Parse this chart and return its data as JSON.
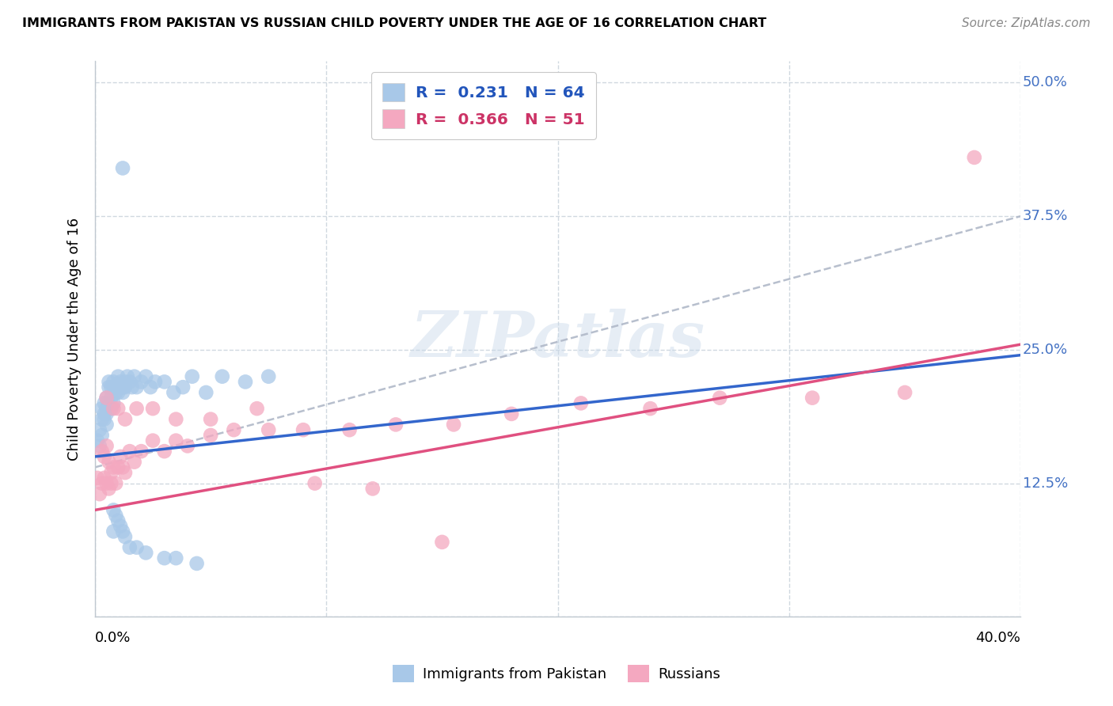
{
  "title": "IMMIGRANTS FROM PAKISTAN VS RUSSIAN CHILD POVERTY UNDER THE AGE OF 16 CORRELATION CHART",
  "source": "Source: ZipAtlas.com",
  "ylabel": "Child Poverty Under the Age of 16",
  "xlim": [
    0.0,
    0.4
  ],
  "ylim": [
    0.0,
    0.52
  ],
  "yticks": [
    0.0,
    0.125,
    0.25,
    0.375,
    0.5
  ],
  "ytick_labels": [
    "",
    "12.5%",
    "25.0%",
    "37.5%",
    "50.0%"
  ],
  "legend1_label": "R =  0.231   N = 64",
  "legend2_label": "R =  0.366   N = 51",
  "series1_name": "Immigrants from Pakistan",
  "series2_name": "Russians",
  "series1_color": "#a8c8e8",
  "series2_color": "#f4a8c0",
  "series1_line_color": "#3366cc",
  "series2_line_color": "#e05080",
  "trendline_color": "#b0b8c8",
  "watermark": "ZIPatlas",
  "background_color": "#ffffff",
  "grid_color": "#d0d8e0",
  "pakistan_x": [
    0.001,
    0.002,
    0.002,
    0.003,
    0.003,
    0.003,
    0.004,
    0.004,
    0.004,
    0.005,
    0.005,
    0.005,
    0.005,
    0.006,
    0.006,
    0.006,
    0.007,
    0.007,
    0.007,
    0.008,
    0.008,
    0.008,
    0.009,
    0.009,
    0.01,
    0.01,
    0.01,
    0.011,
    0.011,
    0.012,
    0.012,
    0.013,
    0.013,
    0.014,
    0.015,
    0.016,
    0.017,
    0.018,
    0.02,
    0.022,
    0.024,
    0.026,
    0.03,
    0.034,
    0.038,
    0.042,
    0.048,
    0.055,
    0.065,
    0.075,
    0.008,
    0.009,
    0.01,
    0.011,
    0.012,
    0.013,
    0.015,
    0.018,
    0.022,
    0.03,
    0.035,
    0.044,
    0.012,
    0.008
  ],
  "pakistan_y": [
    0.165,
    0.175,
    0.16,
    0.185,
    0.17,
    0.195,
    0.19,
    0.185,
    0.2,
    0.19,
    0.195,
    0.18,
    0.205,
    0.215,
    0.2,
    0.22,
    0.215,
    0.205,
    0.195,
    0.215,
    0.22,
    0.2,
    0.21,
    0.215,
    0.225,
    0.218,
    0.21,
    0.215,
    0.22,
    0.21,
    0.215,
    0.215,
    0.22,
    0.225,
    0.22,
    0.215,
    0.225,
    0.215,
    0.22,
    0.225,
    0.215,
    0.22,
    0.22,
    0.21,
    0.215,
    0.225,
    0.21,
    0.225,
    0.22,
    0.225,
    0.1,
    0.095,
    0.09,
    0.085,
    0.08,
    0.075,
    0.065,
    0.065,
    0.06,
    0.055,
    0.055,
    0.05,
    0.42,
    0.08
  ],
  "russia_x": [
    0.001,
    0.002,
    0.003,
    0.003,
    0.004,
    0.004,
    0.005,
    0.005,
    0.006,
    0.006,
    0.007,
    0.007,
    0.008,
    0.009,
    0.01,
    0.011,
    0.012,
    0.013,
    0.015,
    0.017,
    0.02,
    0.025,
    0.03,
    0.035,
    0.04,
    0.05,
    0.06,
    0.075,
    0.09,
    0.11,
    0.13,
    0.155,
    0.18,
    0.21,
    0.24,
    0.27,
    0.31,
    0.008,
    0.01,
    0.013,
    0.018,
    0.025,
    0.035,
    0.05,
    0.07,
    0.095,
    0.12,
    0.15,
    0.35,
    0.38,
    0.005
  ],
  "russia_y": [
    0.13,
    0.115,
    0.125,
    0.155,
    0.13,
    0.15,
    0.125,
    0.16,
    0.12,
    0.145,
    0.135,
    0.125,
    0.14,
    0.125,
    0.14,
    0.15,
    0.14,
    0.135,
    0.155,
    0.145,
    0.155,
    0.165,
    0.155,
    0.165,
    0.16,
    0.17,
    0.175,
    0.175,
    0.175,
    0.175,
    0.18,
    0.18,
    0.19,
    0.2,
    0.195,
    0.205,
    0.205,
    0.195,
    0.195,
    0.185,
    0.195,
    0.195,
    0.185,
    0.185,
    0.195,
    0.125,
    0.12,
    0.07,
    0.21,
    0.43,
    0.205
  ]
}
